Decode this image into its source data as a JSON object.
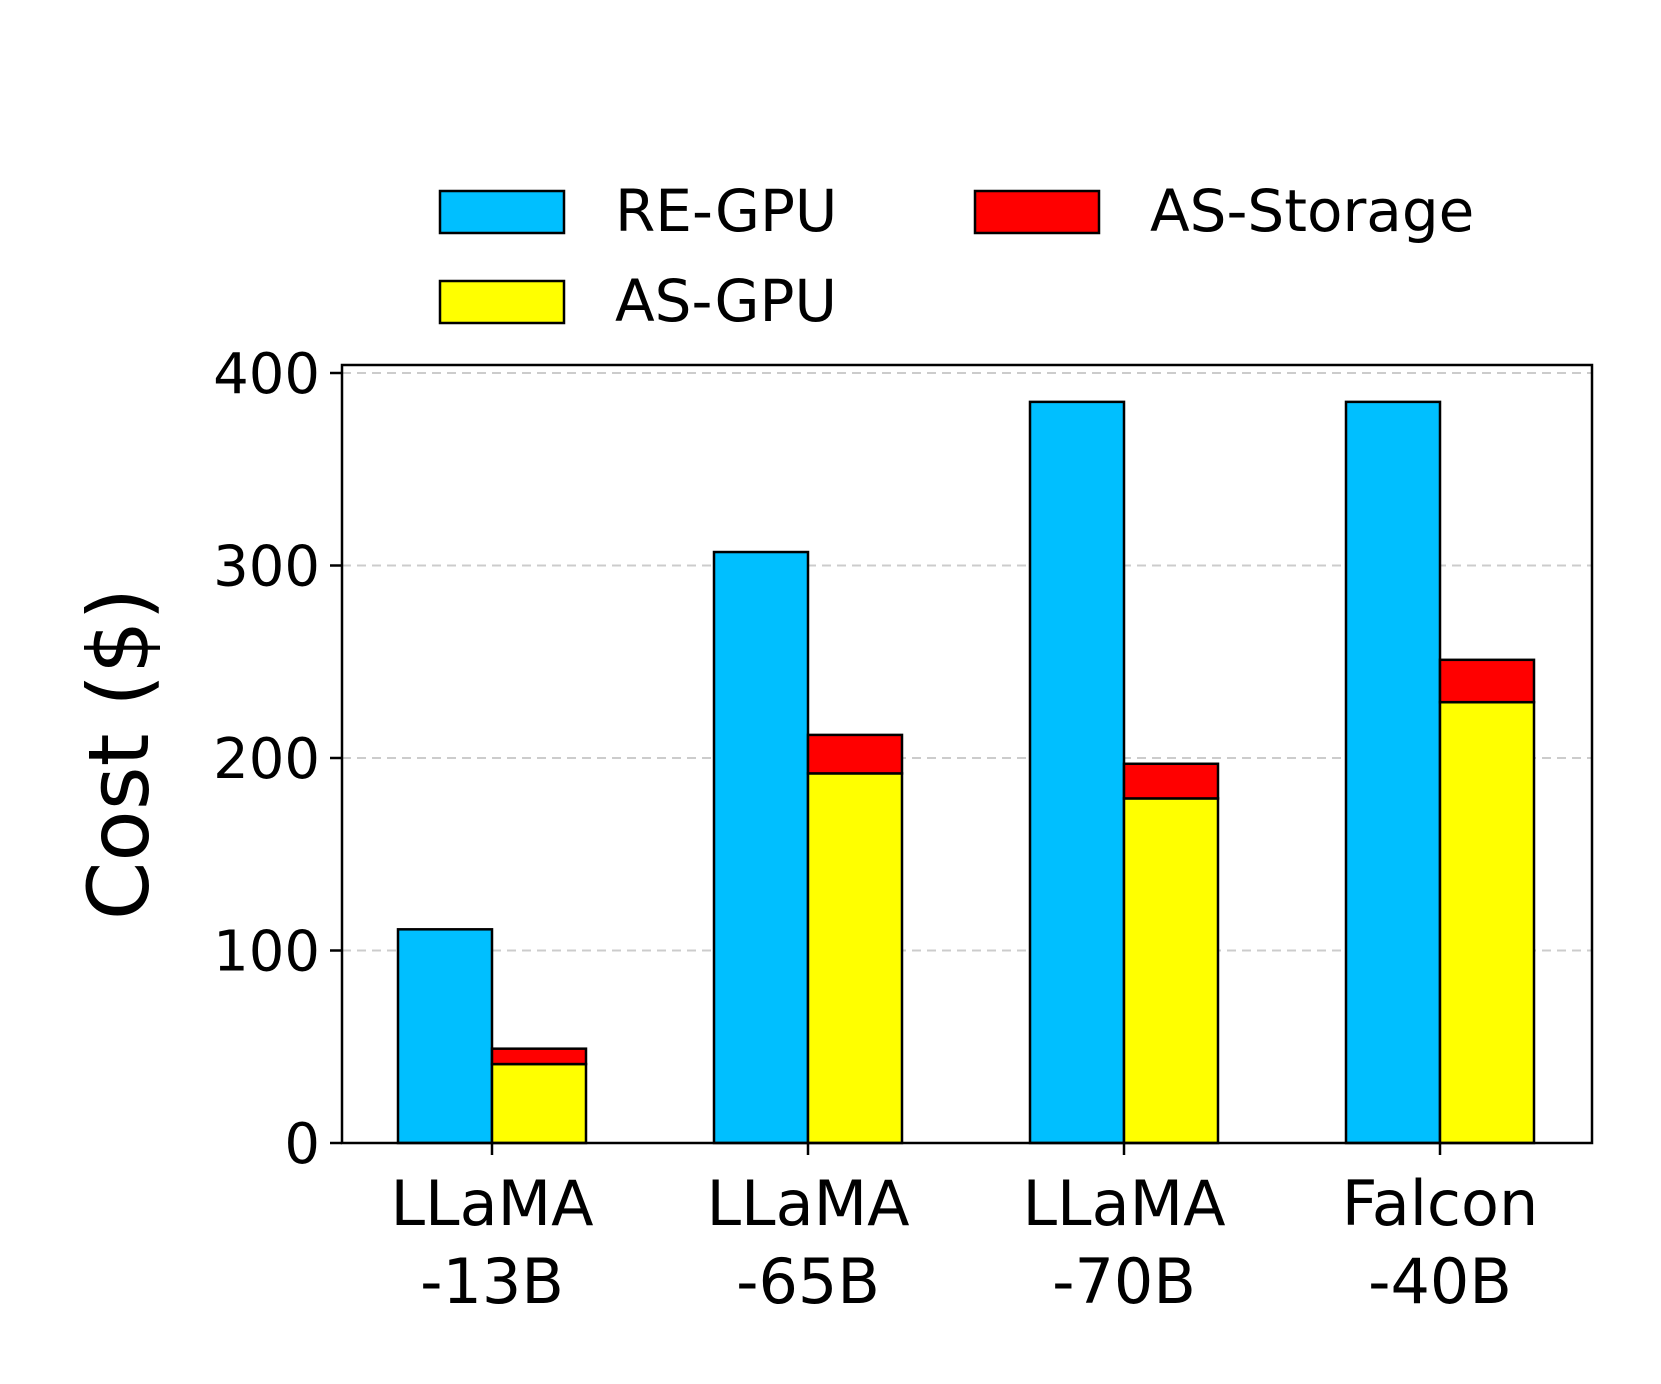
{
  "chart_data": {
    "type": "bar",
    "stacked_groups": true,
    "categories": [
      [
        "LLaMA",
        "-13B"
      ],
      [
        "LLaMA",
        "-65B"
      ],
      [
        "LLaMA",
        "-70B"
      ],
      [
        "Falcon",
        "-40B"
      ]
    ],
    "series": [
      {
        "name": "RE-GPU",
        "stack": "RE",
        "color": "#00bfff",
        "values": [
          111,
          307,
          385,
          385
        ]
      },
      {
        "name": "AS-GPU",
        "stack": "AS",
        "color": "#ffff00",
        "values": [
          41,
          192,
          179,
          229
        ]
      },
      {
        "name": "AS-Storage",
        "stack": "AS",
        "color": "#ff0000",
        "values": [
          8,
          20,
          18,
          22
        ]
      }
    ],
    "ylabel": "Cost ($)",
    "xlabel": "",
    "ylim": [
      0,
      400
    ],
    "yticks": [
      0,
      100,
      200,
      300,
      400
    ],
    "grid": "horizontal dashed",
    "legend": {
      "placement": "top",
      "items": [
        "RE-GPU",
        "AS-GPU",
        "AS-Storage"
      ]
    }
  }
}
